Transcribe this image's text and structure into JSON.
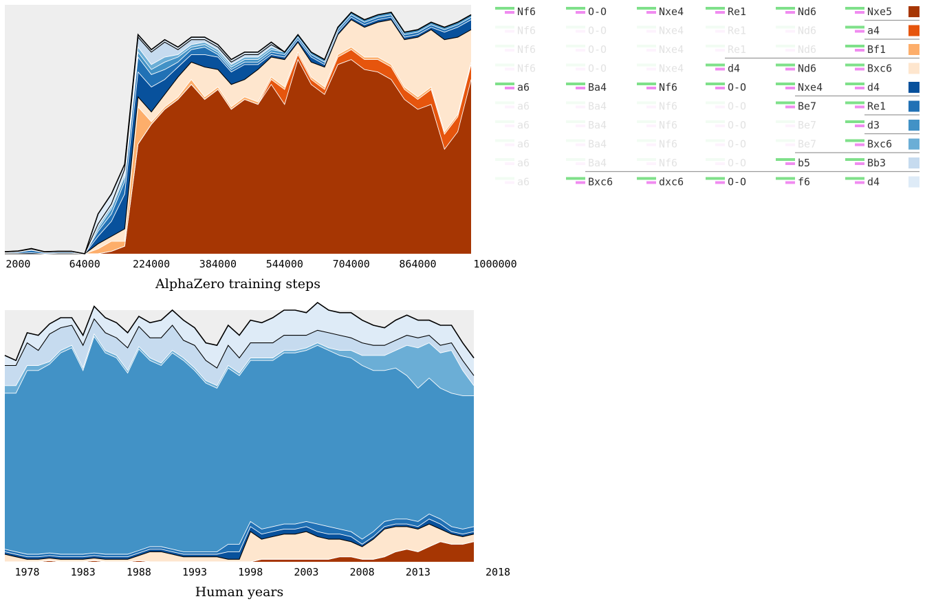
{
  "chart_data": [
    {
      "type": "area",
      "stacking": "stacked",
      "xlabel": "AlphaZero training steps",
      "ylabel": "",
      "title": "",
      "x_ticks": [
        2000,
        64000,
        224000,
        384000,
        544000,
        704000,
        864000,
        1000000
      ],
      "x_ticks_labels": [
        "2000",
        "64000",
        "224000",
        "384000",
        "544000",
        "704000",
        "864000",
        "1000000"
      ],
      "ylim": [
        0,
        1
      ],
      "grid": false,
      "x_categories": [
        "1000",
        "2000",
        "4000",
        "8000",
        "16000",
        "32000",
        "64000",
        "96000",
        "128000",
        "160000",
        "192000",
        "224000",
        "256000",
        "288000",
        "320000",
        "352000",
        "384000",
        "416000",
        "448000",
        "480000",
        "512000",
        "544000",
        "576000",
        "608000",
        "640000",
        "672000",
        "704000",
        "736000",
        "768000",
        "800000",
        "832000",
        "864000",
        "896000",
        "928000",
        "960000",
        "1000000"
      ],
      "series": [
        {
          "values": [
            0,
            0,
            0,
            0,
            0,
            0,
            0,
            0,
            0.01,
            0.03,
            0.44,
            0.52,
            0.58,
            0.62,
            0.68,
            0.62,
            0.66,
            0.58,
            0.62,
            0.6,
            0.68,
            0.6,
            0.78,
            0.68,
            0.64,
            0.76,
            0.78,
            0.74,
            0.73,
            0.7,
            0.62,
            0.58,
            0.6,
            0.42,
            0.49,
            0.7
          ]
        },
        {
          "values": [
            0,
            0,
            0,
            0,
            0,
            0,
            0,
            0,
            0,
            0,
            0,
            0,
            0,
            0,
            0,
            0,
            0,
            0,
            0,
            0,
            0.02,
            0.06,
            0.02,
            0.02,
            0.02,
            0.03,
            0.04,
            0.04,
            0.05,
            0.05,
            0.04,
            0.04,
            0.06,
            0.06,
            0.06,
            0.06
          ]
        },
        {
          "values": [
            0,
            0,
            0,
            0,
            0,
            0,
            0,
            0.02,
            0.04,
            0.02,
            0.15,
            0.01,
            0.01,
            0.01,
            0.02,
            0.01,
            0.01,
            0.01,
            0.01,
            0.01,
            0.01,
            0.01,
            0.01,
            0.01,
            0.01,
            0.01,
            0.01,
            0.01,
            0.01,
            0.01,
            0.01,
            0.01,
            0.01,
            0.01,
            0.01,
            0.01
          ]
        },
        {
          "values": [
            0,
            0,
            0,
            0,
            0,
            0,
            0,
            0.02,
            0.02,
            0.05,
            0.04,
            0.04,
            0.05,
            0.08,
            0.07,
            0.12,
            0.07,
            0.09,
            0.07,
            0.13,
            0.08,
            0.11,
            0.04,
            0.06,
            0.08,
            0.08,
            0.11,
            0.12,
            0.14,
            0.18,
            0.19,
            0.24,
            0.23,
            0.37,
            0.31,
            0.13
          ]
        },
        {
          "values": [
            0.002,
            0.002,
            0.004,
            0,
            0.002,
            0.002,
            0,
            0.03,
            0.06,
            0.14,
            0.1,
            0.1,
            0.06,
            0.04,
            0.03,
            0.05,
            0.05,
            0.05,
            0.06,
            0.02,
            0.01,
            0.01,
            0.01,
            0.02,
            0.01,
            0.01,
            0.01,
            0.01,
            0.01,
            0.01,
            0.01,
            0.01,
            0.01,
            0.03,
            0.04,
            0.04
          ]
        },
        {
          "values": [
            0.002,
            0.004,
            0.01,
            0.004,
            0.004,
            0.004,
            0,
            0.02,
            0.03,
            0.05,
            0.06,
            0.05,
            0.04,
            0.02,
            0.02,
            0.03,
            0.01,
            0.01,
            0.01,
            0.01,
            0.01,
            0.01,
            0.01,
            0.01,
            0.01,
            0.01,
            0.01,
            0.01,
            0.01,
            0.01,
            0.01,
            0.01,
            0.01,
            0.01,
            0.01,
            0.01
          ]
        },
        {
          "values": [
            0.001,
            0.002,
            0.002,
            0.001,
            0.001,
            0.001,
            0,
            0.01,
            0.02,
            0.02,
            0.02,
            0.02,
            0.03,
            0.02,
            0.01,
            0.01,
            0.01,
            0.01,
            0.01,
            0.01,
            0.01,
            0.01,
            0.01,
            0.01,
            0.01,
            0.01,
            0.01,
            0.01,
            0.01,
            0.01,
            0.01,
            0.01,
            0.01,
            0.01,
            0.01,
            0.01
          ]
        },
        {
          "values": [
            0.001,
            0.001,
            0.002,
            0.001,
            0.001,
            0.001,
            0,
            0.01,
            0.01,
            0.01,
            0.02,
            0.02,
            0.02,
            0.01,
            0.01,
            0.01,
            0.01,
            0.01,
            0.01,
            0.01,
            0.01,
            0,
            0,
            0,
            0,
            0,
            0,
            0,
            0,
            0,
            0,
            0,
            0,
            0,
            0,
            0
          ]
        },
        {
          "values": [
            0.001,
            0.001,
            0.001,
            0.001,
            0.001,
            0.001,
            0,
            0.01,
            0.01,
            0.02,
            0.04,
            0.05,
            0.06,
            0.02,
            0.02,
            0.01,
            0.01,
            0.01,
            0.01,
            0.01,
            0.01,
            0,
            0,
            0,
            0,
            0,
            0,
            0,
            0,
            0,
            0,
            0,
            0,
            0,
            0,
            0
          ]
        },
        {
          "values": [
            0.001,
            0.001,
            0.002,
            0.001,
            0.001,
            0.001,
            0,
            0.04,
            0.04,
            0.02,
            0.01,
            0.01,
            0.01,
            0.01,
            0.01,
            0.01,
            0.01,
            0.01,
            0.01,
            0.01,
            0.01,
            0,
            0,
            0,
            0,
            0,
            0,
            0,
            0,
            0,
            0,
            0,
            0,
            0,
            0,
            0
          ]
        }
      ]
    },
    {
      "type": "area",
      "stacking": "stacked",
      "xlabel": "Human years",
      "ylabel": "",
      "title": "",
      "x_ticks": [
        1978,
        1983,
        1988,
        1993,
        1998,
        2003,
        2008,
        2013,
        2018
      ],
      "x_ticks_labels": [
        "1978",
        "1983",
        "1988",
        "1993",
        "1998",
        "2003",
        "2008",
        "2013",
        "2018"
      ],
      "ylim": [
        0,
        1
      ],
      "grid": false,
      "x_categories": [
        1976,
        1977,
        1978,
        1979,
        1980,
        1981,
        1982,
        1983,
        1984,
        1985,
        1986,
        1987,
        1988,
        1989,
        1990,
        1991,
        1992,
        1993,
        1994,
        1995,
        1996,
        1997,
        1998,
        1999,
        2000,
        2001,
        2002,
        2003,
        2004,
        2005,
        2006,
        2007,
        2008,
        2009,
        2010,
        2011,
        2012,
        2013,
        2014,
        2015,
        2016,
        2017,
        2018
      ],
      "series": [
        {
          "values": [
            0,
            0,
            0,
            0,
            0.005,
            0,
            0,
            0,
            0.005,
            0,
            0,
            0,
            0.005,
            0,
            0,
            0,
            0,
            0,
            0,
            0,
            0,
            0,
            0,
            0.01,
            0.01,
            0.01,
            0.01,
            0.01,
            0.01,
            0.01,
            0.02,
            0.02,
            0.01,
            0.01,
            0.02,
            0.04,
            0.05,
            0.04,
            0.06,
            0.08,
            0.07,
            0.07,
            0.08
          ]
        },
        {
          "values": [
            0,
            0,
            0,
            0,
            0,
            0,
            0,
            0,
            0,
            0,
            0,
            0,
            0,
            0,
            0,
            0,
            0,
            0,
            0,
            0,
            0,
            0,
            0,
            0,
            0,
            0,
            0,
            0,
            0,
            0,
            0,
            0,
            0,
            0,
            0,
            0,
            0,
            0,
            0,
            0,
            0,
            0,
            0
          ]
        },
        {
          "values": [
            0,
            0,
            0,
            0,
            0,
            0,
            0,
            0,
            0,
            0,
            0,
            0,
            0,
            0,
            0,
            0,
            0,
            0,
            0,
            0,
            0,
            0,
            0,
            0,
            0,
            0,
            0,
            0,
            0,
            0,
            0,
            0,
            0,
            0,
            0,
            0,
            0,
            0,
            0,
            0,
            0,
            0,
            0
          ]
        },
        {
          "values": [
            0.03,
            0.02,
            0.01,
            0.01,
            0.01,
            0.01,
            0.01,
            0.01,
            0.01,
            0.01,
            0.01,
            0.01,
            0.02,
            0.04,
            0.04,
            0.03,
            0.02,
            0.02,
            0.02,
            0.02,
            0.01,
            0.01,
            0.12,
            0.08,
            0.09,
            0.1,
            0.1,
            0.11,
            0.09,
            0.08,
            0.07,
            0.06,
            0.05,
            0.08,
            0.11,
            0.1,
            0.09,
            0.09,
            0.09,
            0.05,
            0.04,
            0.03,
            0.03
          ]
        },
        {
          "values": [
            0.01,
            0.01,
            0.01,
            0.01,
            0.01,
            0.01,
            0.01,
            0.01,
            0.01,
            0.01,
            0.01,
            0.01,
            0.01,
            0.01,
            0.01,
            0.01,
            0.01,
            0.01,
            0.01,
            0.01,
            0.03,
            0.03,
            0.02,
            0.02,
            0.02,
            0.02,
            0.02,
            0.02,
            0.02,
            0.02,
            0.02,
            0.02,
            0.01,
            0.01,
            0.01,
            0.01,
            0.01,
            0.01,
            0.02,
            0.02,
            0.01,
            0.01,
            0.01
          ]
        },
        {
          "values": [
            0.01,
            0.01,
            0.01,
            0.01,
            0.01,
            0.01,
            0.01,
            0.01,
            0.01,
            0.01,
            0.01,
            0.01,
            0.01,
            0.01,
            0.01,
            0.01,
            0.01,
            0.01,
            0.01,
            0.01,
            0.03,
            0.03,
            0.02,
            0.02,
            0.02,
            0.02,
            0.02,
            0.02,
            0.03,
            0.03,
            0.02,
            0.02,
            0.02,
            0.02,
            0.02,
            0.02,
            0.02,
            0.02,
            0.02,
            0.02,
            0.02,
            0.02,
            0.02
          ]
        },
        {
          "values": [
            0.62,
            0.63,
            0.73,
            0.73,
            0.75,
            0.8,
            0.82,
            0.73,
            0.86,
            0.8,
            0.78,
            0.72,
            0.8,
            0.74,
            0.72,
            0.78,
            0.76,
            0.72,
            0.67,
            0.65,
            0.7,
            0.67,
            0.64,
            0.67,
            0.66,
            0.68,
            0.68,
            0.68,
            0.71,
            0.7,
            0.69,
            0.69,
            0.69,
            0.64,
            0.6,
            0.6,
            0.57,
            0.53,
            0.54,
            0.52,
            0.53,
            0.53,
            0.52
          ]
        },
        {
          "values": [
            0.03,
            0.03,
            0.02,
            0.02,
            0.01,
            0.01,
            0.01,
            0.01,
            0.01,
            0.01,
            0.01,
            0.01,
            0.01,
            0.01,
            0.01,
            0.01,
            0.01,
            0.01,
            0.01,
            0.01,
            0.01,
            0.01,
            0.01,
            0.01,
            0.01,
            0.01,
            0.01,
            0.01,
            0.01,
            0.01,
            0.02,
            0.03,
            0.04,
            0.06,
            0.06,
            0.07,
            0.12,
            0.16,
            0.14,
            0.14,
            0.17,
            0.1,
            0.04
          ]
        },
        {
          "values": [
            0.08,
            0.08,
            0.09,
            0.06,
            0.11,
            0.09,
            0.08,
            0.09,
            0.06,
            0.07,
            0.07,
            0.09,
            0.08,
            0.08,
            0.1,
            0.1,
            0.07,
            0.09,
            0.08,
            0.07,
            0.08,
            0.06,
            0.06,
            0.06,
            0.06,
            0.06,
            0.06,
            0.05,
            0.05,
            0.06,
            0.06,
            0.05,
            0.05,
            0.04,
            0.04,
            0.04,
            0.04,
            0.04,
            0.03,
            0.03,
            0.03,
            0.04,
            0.04
          ]
        },
        {
          "values": [
            0.04,
            0.02,
            0.04,
            0.06,
            0.04,
            0.04,
            0.03,
            0.04,
            0.05,
            0.06,
            0.06,
            0.06,
            0.04,
            0.06,
            0.07,
            0.06,
            0.08,
            0.07,
            0.07,
            0.09,
            0.08,
            0.09,
            0.09,
            0.08,
            0.1,
            0.1,
            0.1,
            0.09,
            0.11,
            0.09,
            0.09,
            0.1,
            0.09,
            0.08,
            0.07,
            0.08,
            0.08,
            0.07,
            0.06,
            0.08,
            0.07,
            0.07,
            0.07
          ]
        }
      ]
    }
  ],
  "legend": {
    "colors": [
      "#a63603",
      "#e6550d",
      "#fdae6b",
      "#fee6ce",
      "#08519c",
      "#2171b5",
      "#4292c6",
      "#6baed6",
      "#c6dbef",
      "#deebf7"
    ],
    "rows": [
      {
        "moves": [
          "Nf6",
          "O-O",
          "Nxe4",
          "Re1",
          "Nd6",
          "Nxe5"
        ]
      },
      {
        "moves": [
          "Nf6",
          "O-O",
          "Nxe4",
          "Re1",
          "Nd6",
          "a4"
        ]
      },
      {
        "moves": [
          "Nf6",
          "O-O",
          "Nxe4",
          "Re1",
          "Nd6",
          "Bf1"
        ]
      },
      {
        "moves": [
          "Nf6",
          "O-O",
          "Nxe4",
          "d4",
          "Nd6",
          "Bxc6"
        ]
      },
      {
        "moves": [
          "a6",
          "Ba4",
          "Nf6",
          "O-O",
          "Nxe4",
          "d4"
        ]
      },
      {
        "moves": [
          "a6",
          "Ba4",
          "Nf6",
          "O-O",
          "Be7",
          "Re1"
        ]
      },
      {
        "moves": [
          "a6",
          "Ba4",
          "Nf6",
          "O-O",
          "Be7",
          "d3"
        ]
      },
      {
        "moves": [
          "a6",
          "Ba4",
          "Nf6",
          "O-O",
          "Be7",
          "Bxc6"
        ]
      },
      {
        "moves": [
          "a6",
          "Ba4",
          "Nf6",
          "O-O",
          "b5",
          "Bb3"
        ]
      },
      {
        "moves": [
          "a6",
          "Bxc6",
          "dxc6",
          "O-O",
          "f6",
          "d4"
        ]
      }
    ],
    "active_from": [
      0,
      5,
      5,
      3,
      0,
      4,
      5,
      5,
      4,
      1
    ]
  }
}
